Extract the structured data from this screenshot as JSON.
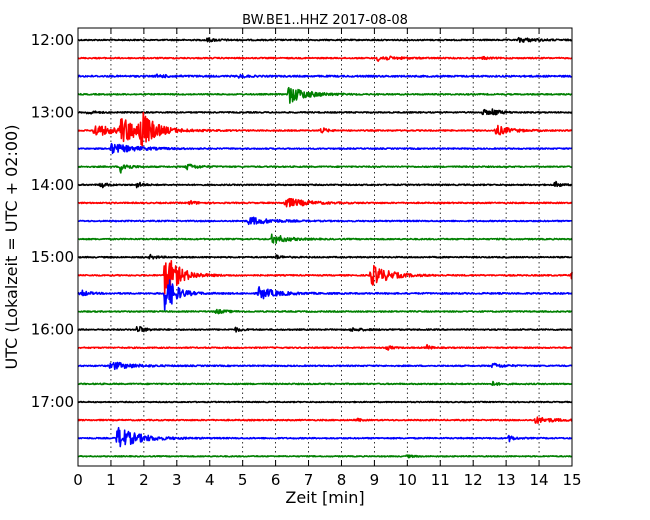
{
  "chart_data": {
    "type": "line",
    "title": "BW.BE1..HHZ 2017-08-08",
    "xlabel": "Zeit  [min]",
    "ylabel": "UTC (Lokalzeit = UTC + 02:00)",
    "xlim": [
      0,
      15
    ],
    "x_ticks": [
      0,
      1,
      2,
      3,
      4,
      5,
      6,
      7,
      8,
      9,
      10,
      11,
      12,
      13,
      14,
      15
    ],
    "grid": true,
    "trace_interval_minutes": 15,
    "start_time": "12:00",
    "y_tick_labels": [
      "12:00",
      "13:00",
      "14:00",
      "15:00",
      "16:00",
      "17:00"
    ],
    "color_cycle": [
      "#000000",
      "#ff0000",
      "#0000ff",
      "#008000"
    ],
    "series": [
      {
        "start": "12:00",
        "color": "#000000",
        "noise": 0.6,
        "events": [
          {
            "t": 3.9,
            "amp": 1.5,
            "dur": 0.4
          },
          {
            "t": 13.4,
            "amp": 2.2,
            "dur": 0.5
          }
        ]
      },
      {
        "start": "12:15",
        "color": "#ff0000",
        "noise": 0.6,
        "events": [
          {
            "t": 9.1,
            "amp": 2.5,
            "dur": 0.5
          },
          {
            "t": 12.3,
            "amp": 1.2,
            "dur": 0.2
          }
        ]
      },
      {
        "start": "12:30",
        "color": "#0000ff",
        "noise": 0.8,
        "events": [
          {
            "t": 2.4,
            "amp": 1.3,
            "dur": 0.4
          },
          {
            "t": 4.9,
            "amp": 1.5,
            "dur": 0.2
          }
        ]
      },
      {
        "start": "12:45",
        "color": "#008000",
        "noise": 0.6,
        "events": [
          {
            "t": 6.4,
            "amp": 9,
            "dur": 0.5
          }
        ]
      },
      {
        "start": "13:00",
        "color": "#000000",
        "noise": 0.6,
        "events": [
          {
            "t": 0.3,
            "amp": 2,
            "dur": 0.2
          },
          {
            "t": 12.3,
            "amp": 2.5,
            "dur": 0.3
          },
          {
            "t": 12.6,
            "amp": 2.5,
            "dur": 0.2
          }
        ]
      },
      {
        "start": "13:15",
        "color": "#ff0000",
        "noise": 0.6,
        "events": [
          {
            "t": 0.5,
            "amp": 6,
            "dur": 0.6
          },
          {
            "t": 1.3,
            "amp": 12,
            "dur": 0.7
          },
          {
            "t": 1.9,
            "amp": 18,
            "dur": 0.3
          },
          {
            "t": 7.4,
            "amp": 3,
            "dur": 0.15
          },
          {
            "t": 12.7,
            "amp": 5,
            "dur": 0.4
          }
        ]
      },
      {
        "start": "13:30",
        "color": "#0000ff",
        "noise": 0.6,
        "events": [
          {
            "t": 1.0,
            "amp": 5,
            "dur": 0.7
          }
        ]
      },
      {
        "start": "13:45",
        "color": "#008000",
        "noise": 0.6,
        "events": [
          {
            "t": 1.3,
            "amp": 6,
            "dur": 0.2
          },
          {
            "t": 3.3,
            "amp": 3,
            "dur": 0.3
          }
        ]
      },
      {
        "start": "14:00",
        "color": "#000000",
        "noise": 0.6,
        "events": [
          {
            "t": 0.7,
            "amp": 3,
            "dur": 0.15
          },
          {
            "t": 1.8,
            "amp": 3,
            "dur": 0.15
          },
          {
            "t": 14.5,
            "amp": 3,
            "dur": 0.15
          }
        ]
      },
      {
        "start": "14:15",
        "color": "#ff0000",
        "noise": 0.6,
        "events": [
          {
            "t": 3.4,
            "amp": 2,
            "dur": 0.2
          },
          {
            "t": 6.3,
            "amp": 5,
            "dur": 0.6
          }
        ]
      },
      {
        "start": "14:30",
        "color": "#0000ff",
        "noise": 0.6,
        "events": [
          {
            "t": 5.2,
            "amp": 4,
            "dur": 0.6
          }
        ]
      },
      {
        "start": "14:45",
        "color": "#008000",
        "noise": 0.6,
        "events": [
          {
            "t": 5.9,
            "amp": 5,
            "dur": 0.4
          }
        ]
      },
      {
        "start": "15:00",
        "color": "#000000",
        "noise": 0.6,
        "events": [
          {
            "t": 2.2,
            "amp": 2,
            "dur": 0.2
          },
          {
            "t": 6.0,
            "amp": 2,
            "dur": 0.2
          }
        ]
      },
      {
        "start": "15:15",
        "color": "#ff0000",
        "noise": 0.6,
        "events": [
          {
            "t": 2.65,
            "amp": 22,
            "dur": 0.4
          },
          {
            "t": 8.9,
            "amp": 11,
            "dur": 0.5
          },
          {
            "t": 15.0,
            "amp": 4,
            "dur": 0.3
          }
        ]
      },
      {
        "start": "15:30",
        "color": "#0000ff",
        "noise": 0.7,
        "events": [
          {
            "t": 0.1,
            "amp": 3,
            "dur": 0.2
          },
          {
            "t": 2.65,
            "amp": 20,
            "dur": 0.3
          },
          {
            "t": 5.5,
            "amp": 6,
            "dur": 0.5
          }
        ]
      },
      {
        "start": "15:45",
        "color": "#008000",
        "noise": 0.6,
        "events": [
          {
            "t": 4.2,
            "amp": 2,
            "dur": 0.3
          }
        ]
      },
      {
        "start": "16:00",
        "color": "#000000",
        "noise": 0.6,
        "events": [
          {
            "t": 1.8,
            "amp": 4,
            "dur": 0.2
          },
          {
            "t": 4.8,
            "amp": 2,
            "dur": 0.15
          },
          {
            "t": 8.3,
            "amp": 1.5,
            "dur": 0.4
          }
        ]
      },
      {
        "start": "16:15",
        "color": "#ff0000",
        "noise": 0.6,
        "events": [
          {
            "t": 9.4,
            "amp": 2,
            "dur": 0.15
          },
          {
            "t": 10.6,
            "amp": 3,
            "dur": 0.1
          }
        ]
      },
      {
        "start": "16:30",
        "color": "#0000ff",
        "noise": 0.6,
        "events": [
          {
            "t": 1.0,
            "amp": 4,
            "dur": 0.6
          },
          {
            "t": 12.6,
            "amp": 2.5,
            "dur": 0.3
          }
        ]
      },
      {
        "start": "16:45",
        "color": "#008000",
        "noise": 0.6,
        "events": [
          {
            "t": 12.6,
            "amp": 2,
            "dur": 0.15
          }
        ]
      },
      {
        "start": "17:00",
        "color": "#000000",
        "noise": 0.5,
        "events": []
      },
      {
        "start": "17:15",
        "color": "#ff0000",
        "noise": 0.6,
        "events": [
          {
            "t": 8.5,
            "amp": 1.5,
            "dur": 0.1
          },
          {
            "t": 13.9,
            "amp": 3,
            "dur": 0.5
          }
        ]
      },
      {
        "start": "17:30",
        "color": "#0000ff",
        "noise": 0.6,
        "events": [
          {
            "t": 1.2,
            "amp": 11,
            "dur": 0.6
          },
          {
            "t": 13.1,
            "amp": 3,
            "dur": 0.15
          }
        ]
      },
      {
        "start": "17:45",
        "color": "#008000",
        "noise": 0.5,
        "events": [
          {
            "t": 10.0,
            "amp": 1.2,
            "dur": 0.2
          }
        ]
      }
    ]
  }
}
